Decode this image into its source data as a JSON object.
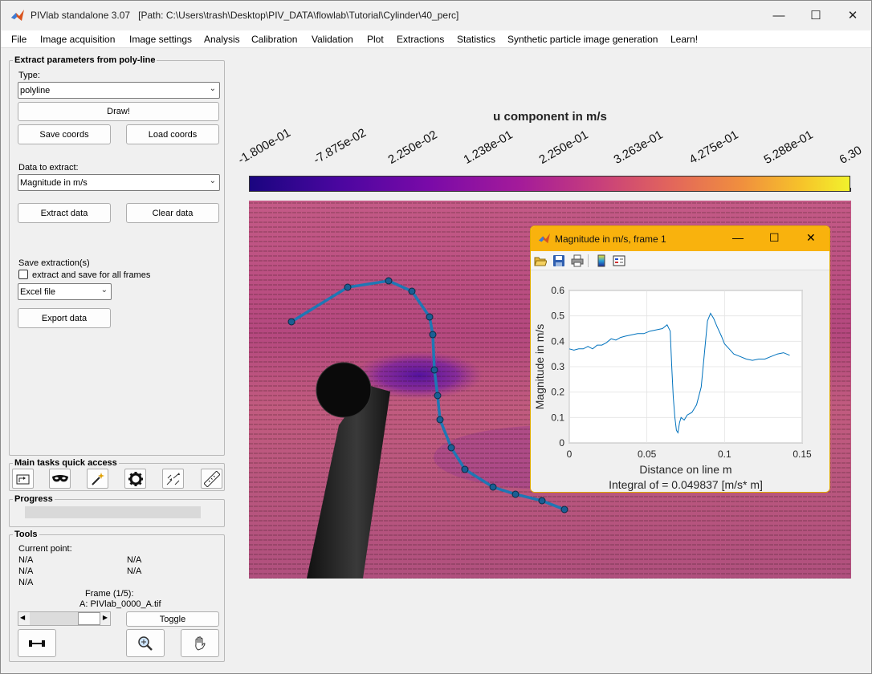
{
  "window": {
    "app_title": "PIVlab standalone 3.07",
    "path": "[Path: C:\\Users\\trash\\Desktop\\PIV_DATA\\flowlab\\Tutorial\\Cylinder\\40_perc]",
    "minimize_glyph": "—",
    "maximize_glyph": "☐",
    "close_glyph": "✕"
  },
  "menu": [
    "File",
    "Image acquisition",
    "Image settings",
    "Analysis",
    "Calibration",
    "Validation",
    "Plot",
    "Extractions",
    "Statistics",
    "Synthetic particle image generation",
    "Learn!"
  ],
  "extract_panel": {
    "title": "Extract parameters from poly-line",
    "type_label": "Type:",
    "type_value": "polyline",
    "draw_button": "Draw!",
    "save_coords": "Save coords",
    "load_coords": "Load coords",
    "data_label": "Data to extract:",
    "data_value": "Magnitude in m/s",
    "extract_button": "Extract data",
    "clear_button": "Clear data",
    "save_label": "Save extraction(s)",
    "checkbox_label": "extract and save for all frames",
    "format_value": "Excel file",
    "export_button": "Export data"
  },
  "quick_access": {
    "title": "Main tasks quick access",
    "icons": [
      "load-images-icon",
      "mask-icon",
      "magic-wand-icon",
      "settings-gear-icon",
      "vectors-icon",
      "ruler-icon"
    ]
  },
  "progress": {
    "title": "Progress",
    "value": 0
  },
  "tools": {
    "title": "Tools",
    "current_point": "Current point:",
    "na": "N/A",
    "frame_label": "Frame (1/5):",
    "frame_file": "A: PIVlab_0000_A.tif",
    "toggle_button": "Toggle"
  },
  "main_plot": {
    "title": "u component in m/s",
    "colorbar_ticks": [
      "-1.800e-01",
      "-7.875e-02",
      "2.250e-02",
      "1.238e-01",
      "2.250e-01",
      "3.263e-01",
      "4.275e-01",
      "5.288e-01",
      "6.30"
    ],
    "colors": {
      "line": "#1f77b4",
      "marker": "#1a5e93"
    }
  },
  "figure": {
    "title": "Magnitude in m/s, frame 1",
    "xlabel": "Distance on line m",
    "ylabel": "Magnitude in m/s",
    "footer": "Integral of  = 0.049837 [m/s* m]",
    "xticks": [
      "0",
      "0.05",
      "0.1",
      "0.15"
    ],
    "yticks": [
      "0",
      "0.1",
      "0.2",
      "0.3",
      "0.4",
      "0.5",
      "0.6"
    ]
  },
  "chart_data": {
    "type": "line",
    "title": "",
    "xlabel": "Distance on line m",
    "ylabel": "Magnitude in m/s",
    "xlim": [
      0,
      0.15
    ],
    "ylim": [
      0,
      0.6
    ],
    "grid": true,
    "series": [
      {
        "x": [
          0,
          0.003,
          0.006,
          0.009,
          0.012,
          0.015,
          0.018,
          0.021,
          0.024,
          0.027,
          0.03,
          0.033,
          0.036,
          0.04,
          0.044,
          0.048,
          0.052,
          0.056,
          0.06,
          0.063,
          0.065,
          0.066,
          0.067,
          0.068,
          0.069,
          0.07,
          0.071,
          0.072,
          0.074,
          0.076,
          0.079,
          0.082,
          0.085,
          0.087,
          0.089,
          0.091,
          0.093,
          0.095,
          0.098,
          0.1,
          0.103,
          0.106,
          0.11,
          0.114,
          0.118,
          0.122,
          0.126,
          0.13,
          0.134,
          0.138,
          0.142
        ],
        "y": [
          0.37,
          0.365,
          0.37,
          0.37,
          0.38,
          0.37,
          0.385,
          0.385,
          0.395,
          0.41,
          0.405,
          0.415,
          0.42,
          0.425,
          0.43,
          0.43,
          0.44,
          0.445,
          0.45,
          0.465,
          0.44,
          0.3,
          0.18,
          0.1,
          0.05,
          0.04,
          0.08,
          0.1,
          0.09,
          0.11,
          0.12,
          0.15,
          0.22,
          0.35,
          0.48,
          0.51,
          0.49,
          0.46,
          0.42,
          0.39,
          0.37,
          0.35,
          0.34,
          0.33,
          0.325,
          0.33,
          0.33,
          0.34,
          0.35,
          0.355,
          0.345
        ]
      }
    ]
  }
}
